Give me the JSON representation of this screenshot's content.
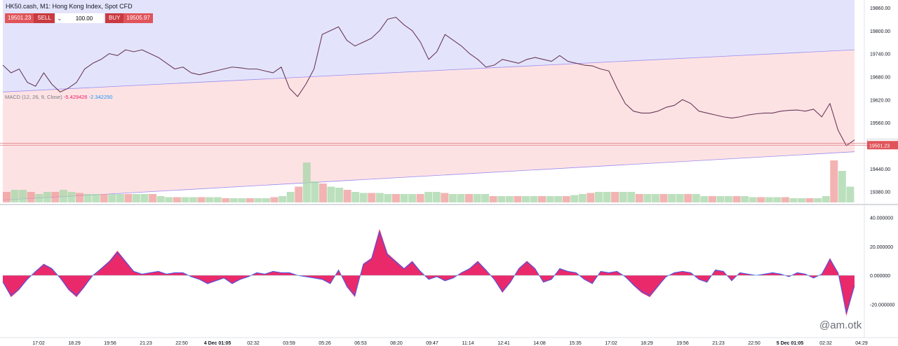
{
  "header": {
    "title": "HK50.cash, M1: Hong Kong Index, Spot CFD",
    "sell_price": "19501.23",
    "sell_label": "SELL",
    "quantity": "100.00",
    "buy_label": "BUY",
    "buy_price": "19505.97"
  },
  "macd_label": {
    "name": "MACD (12, 26, 9, Close)",
    "macd_value": "-5.429426",
    "signal_value": "-2.342250"
  },
  "watermark": "@am.otk",
  "colors": {
    "upper_zone": "#e3e4fb",
    "channel_fill": "#fde2e4",
    "histogram": "#e91e63",
    "macd_line": "#2962ff",
    "sell_button": "#c93a40",
    "buy_button": "#c93a40",
    "price_tag_red": "#e0555b"
  },
  "chart_data": [
    {
      "type": "line",
      "title": "HK50.cash, M1: Hong Kong Index, Spot CFD",
      "x_tick_labels": [
        "17:02",
        "18:29",
        "19:56",
        "21:23",
        "22:50",
        "4 Dec 01:05",
        "02:32",
        "03:59",
        "05:26",
        "06:53",
        "08:20",
        "09:47",
        "11:14",
        "12:41",
        "14:08",
        "15:35",
        "17:02",
        "18:29",
        "19:56",
        "21:23",
        "22:50",
        "5 Dec 01:05",
        "02:32",
        "04:29"
      ],
      "y_tick_labels": [
        "19860.00",
        "19800.00",
        "19740.00",
        "19680.00",
        "19620.00",
        "19560.00",
        "19440.00",
        "19380.00"
      ],
      "ylim": [
        19350,
        19880
      ],
      "price_tags": [
        {
          "label": "19505.97",
          "value": 19505.97,
          "color": "#ffffff"
        },
        {
          "label": "19501.23",
          "value": 19501.23,
          "color": "#e0555b"
        }
      ],
      "channel": {
        "upper": [
          19640,
          19750
        ],
        "lower": [
          19358,
          19484
        ],
        "x_start": "16:00",
        "x_end": "04:29"
      },
      "series": [
        {
          "values": [
            19710,
            19690,
            19700,
            19665,
            19655,
            19690,
            19660,
            19640,
            19650,
            19665,
            19700,
            19715,
            19725,
            19740,
            19735,
            19750,
            19745,
            19750,
            19740,
            19730,
            19715,
            19700,
            19705,
            19690,
            19685,
            19690,
            19695,
            19700,
            19705,
            19703,
            19700,
            19700,
            19695,
            19690,
            19705,
            19650,
            19628,
            19660,
            19700,
            19790,
            19800,
            19810,
            19775,
            19760,
            19770,
            19780,
            19800,
            19830,
            19835,
            19815,
            19800,
            19770,
            19725,
            19745,
            19790,
            19775,
            19760,
            19740,
            19725,
            19705,
            19710,
            19725,
            19720,
            19715,
            19725,
            19730,
            19725,
            19720,
            19735,
            19720,
            19715,
            19710,
            19708,
            19700,
            19695,
            19650,
            19610,
            19590,
            19585,
            19585,
            19590,
            19600,
            19605,
            19620,
            19610,
            19590,
            19585,
            19580,
            19575,
            19572,
            19575,
            19580,
            19583,
            19585,
            19585,
            19590,
            19592,
            19593,
            19590,
            19595,
            19575,
            19610,
            19540,
            19500,
            19515
          ]
        },
        {
          "name": "Volume",
          "values": [
            10,
            12,
            12,
            10,
            8,
            10,
            10,
            12,
            10,
            9,
            8,
            8,
            8,
            8,
            8,
            8,
            8,
            8,
            8,
            6,
            5,
            5,
            5,
            5,
            5,
            5,
            5,
            4,
            4,
            4,
            4,
            4,
            4,
            5,
            6,
            10,
            15,
            38,
            20,
            18,
            15,
            14,
            12,
            10,
            9,
            9,
            9,
            8,
            8,
            8,
            8,
            8,
            10,
            10,
            9,
            8,
            8,
            8,
            8,
            8,
            6,
            6,
            6,
            6,
            6,
            6,
            6,
            6,
            6,
            6,
            7,
            8,
            9,
            10,
            10,
            10,
            10,
            10,
            8,
            8,
            8,
            8,
            8,
            8,
            8,
            8,
            6,
            6,
            6,
            6,
            6,
            6,
            5,
            5,
            5,
            5,
            5,
            4,
            4,
            4,
            4,
            6,
            40,
            30,
            15
          ]
        }
      ]
    },
    {
      "type": "bar",
      "title": "MACD (12, 26, 9, Close)",
      "y_tick_labels": [
        "40.000000",
        "20.000000",
        "0.000000",
        "-20.000000"
      ],
      "ylim": [
        -42,
        47
      ],
      "series": [
        {
          "name": "MACD histogram",
          "values": [
            -5,
            -15,
            -10,
            -3,
            3,
            8,
            5,
            -2,
            -10,
            -15,
            -8,
            0,
            5,
            10,
            17,
            10,
            3,
            1,
            2,
            3,
            1,
            2,
            2,
            -1,
            -3,
            -6,
            -4,
            -2,
            -6,
            -3,
            -1,
            2,
            1,
            3,
            2,
            2,
            0,
            -1,
            -2,
            -3,
            -6,
            4,
            -8,
            -15,
            8,
            12,
            32,
            15,
            10,
            5,
            10,
            3,
            -3,
            -1,
            -4,
            -2,
            2,
            5,
            10,
            4,
            -3,
            -12,
            -5,
            5,
            10,
            5,
            -5,
            -3,
            5,
            3,
            2,
            -3,
            -6,
            3,
            2,
            3,
            -1,
            -7,
            -12,
            -15,
            -8,
            -1,
            2,
            3,
            2,
            -3,
            -5,
            4,
            3,
            -4,
            2,
            1,
            0,
            1,
            2,
            1,
            -1,
            2,
            1,
            -2,
            1,
            12,
            2,
            -28,
            -8
          ]
        }
      ]
    }
  ]
}
